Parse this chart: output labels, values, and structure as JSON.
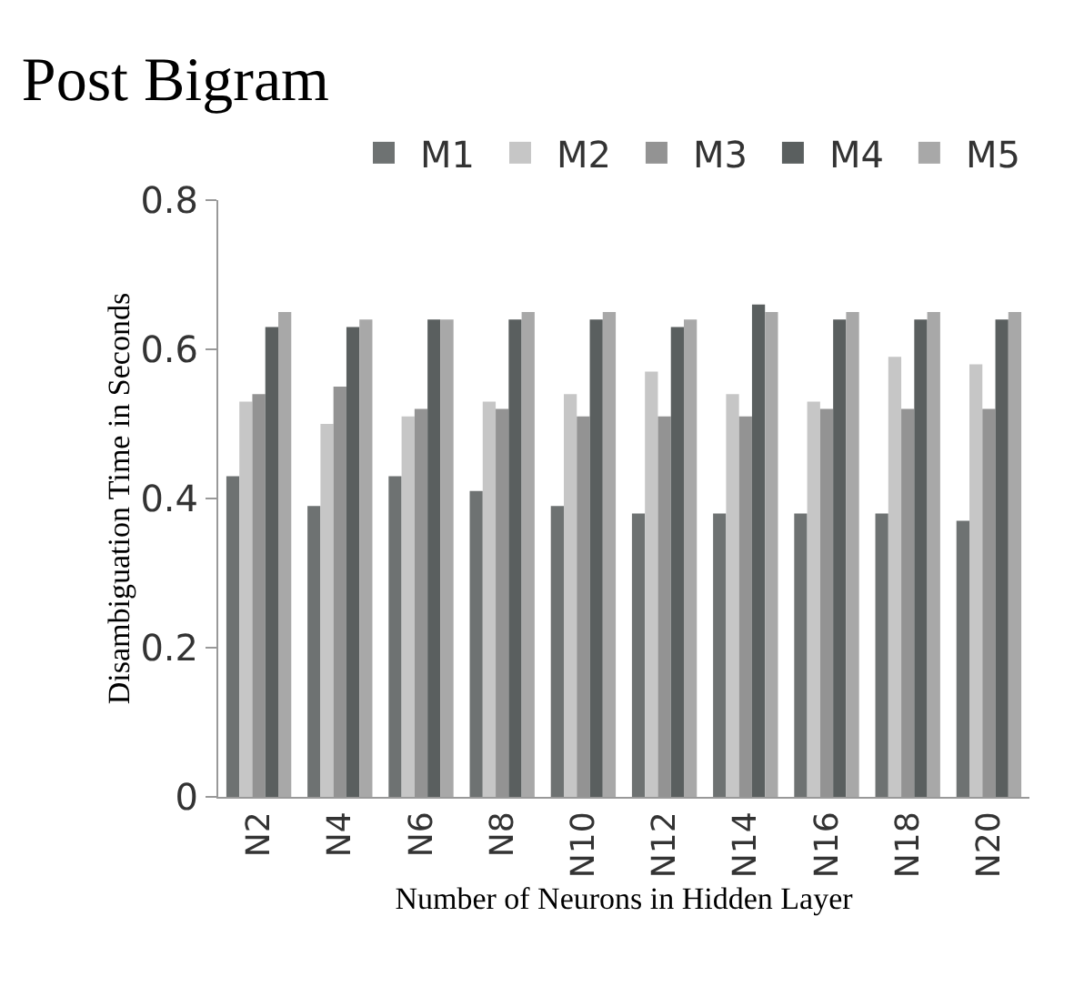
{
  "chart_data": {
    "type": "bar",
    "title": "Post Bigram",
    "xlabel": "Number of Neurons in Hidden Layer",
    "ylabel": "Disambiguation Time in Seconds",
    "categories": [
      "N2",
      "N4",
      "N6",
      "N8",
      "N10",
      "N12",
      "N14",
      "N16",
      "N18",
      "N20"
    ],
    "series": [
      {
        "name": "M1",
        "color": "#6e7272",
        "values": [
          0.43,
          0.39,
          0.43,
          0.41,
          0.39,
          0.38,
          0.38,
          0.38,
          0.38,
          0.37
        ]
      },
      {
        "name": "M2",
        "color": "#c6c6c6",
        "values": [
          0.53,
          0.5,
          0.51,
          0.53,
          0.54,
          0.57,
          0.54,
          0.53,
          0.59,
          0.58
        ]
      },
      {
        "name": "M3",
        "color": "#939393",
        "values": [
          0.54,
          0.55,
          0.52,
          0.52,
          0.51,
          0.51,
          0.51,
          0.52,
          0.52,
          0.52
        ]
      },
      {
        "name": "M4",
        "color": "#5a5f5f",
        "values": [
          0.63,
          0.63,
          0.64,
          0.64,
          0.64,
          0.63,
          0.66,
          0.64,
          0.64,
          0.64
        ]
      },
      {
        "name": "M5",
        "color": "#a8a8a8",
        "values": [
          0.65,
          0.64,
          0.64,
          0.65,
          0.65,
          0.64,
          0.65,
          0.65,
          0.65,
          0.65
        ]
      }
    ],
    "ylim": [
      0,
      0.8
    ],
    "yticks": [
      0,
      {
        "value": 0.2,
        "label": "0.2"
      },
      {
        "value": 0.4,
        "label": "0.4"
      },
      {
        "value": 0.6,
        "label": "0.6"
      },
      {
        "value": 0.8,
        "label": "0.8"
      }
    ],
    "grid": false,
    "legend": "top right"
  }
}
